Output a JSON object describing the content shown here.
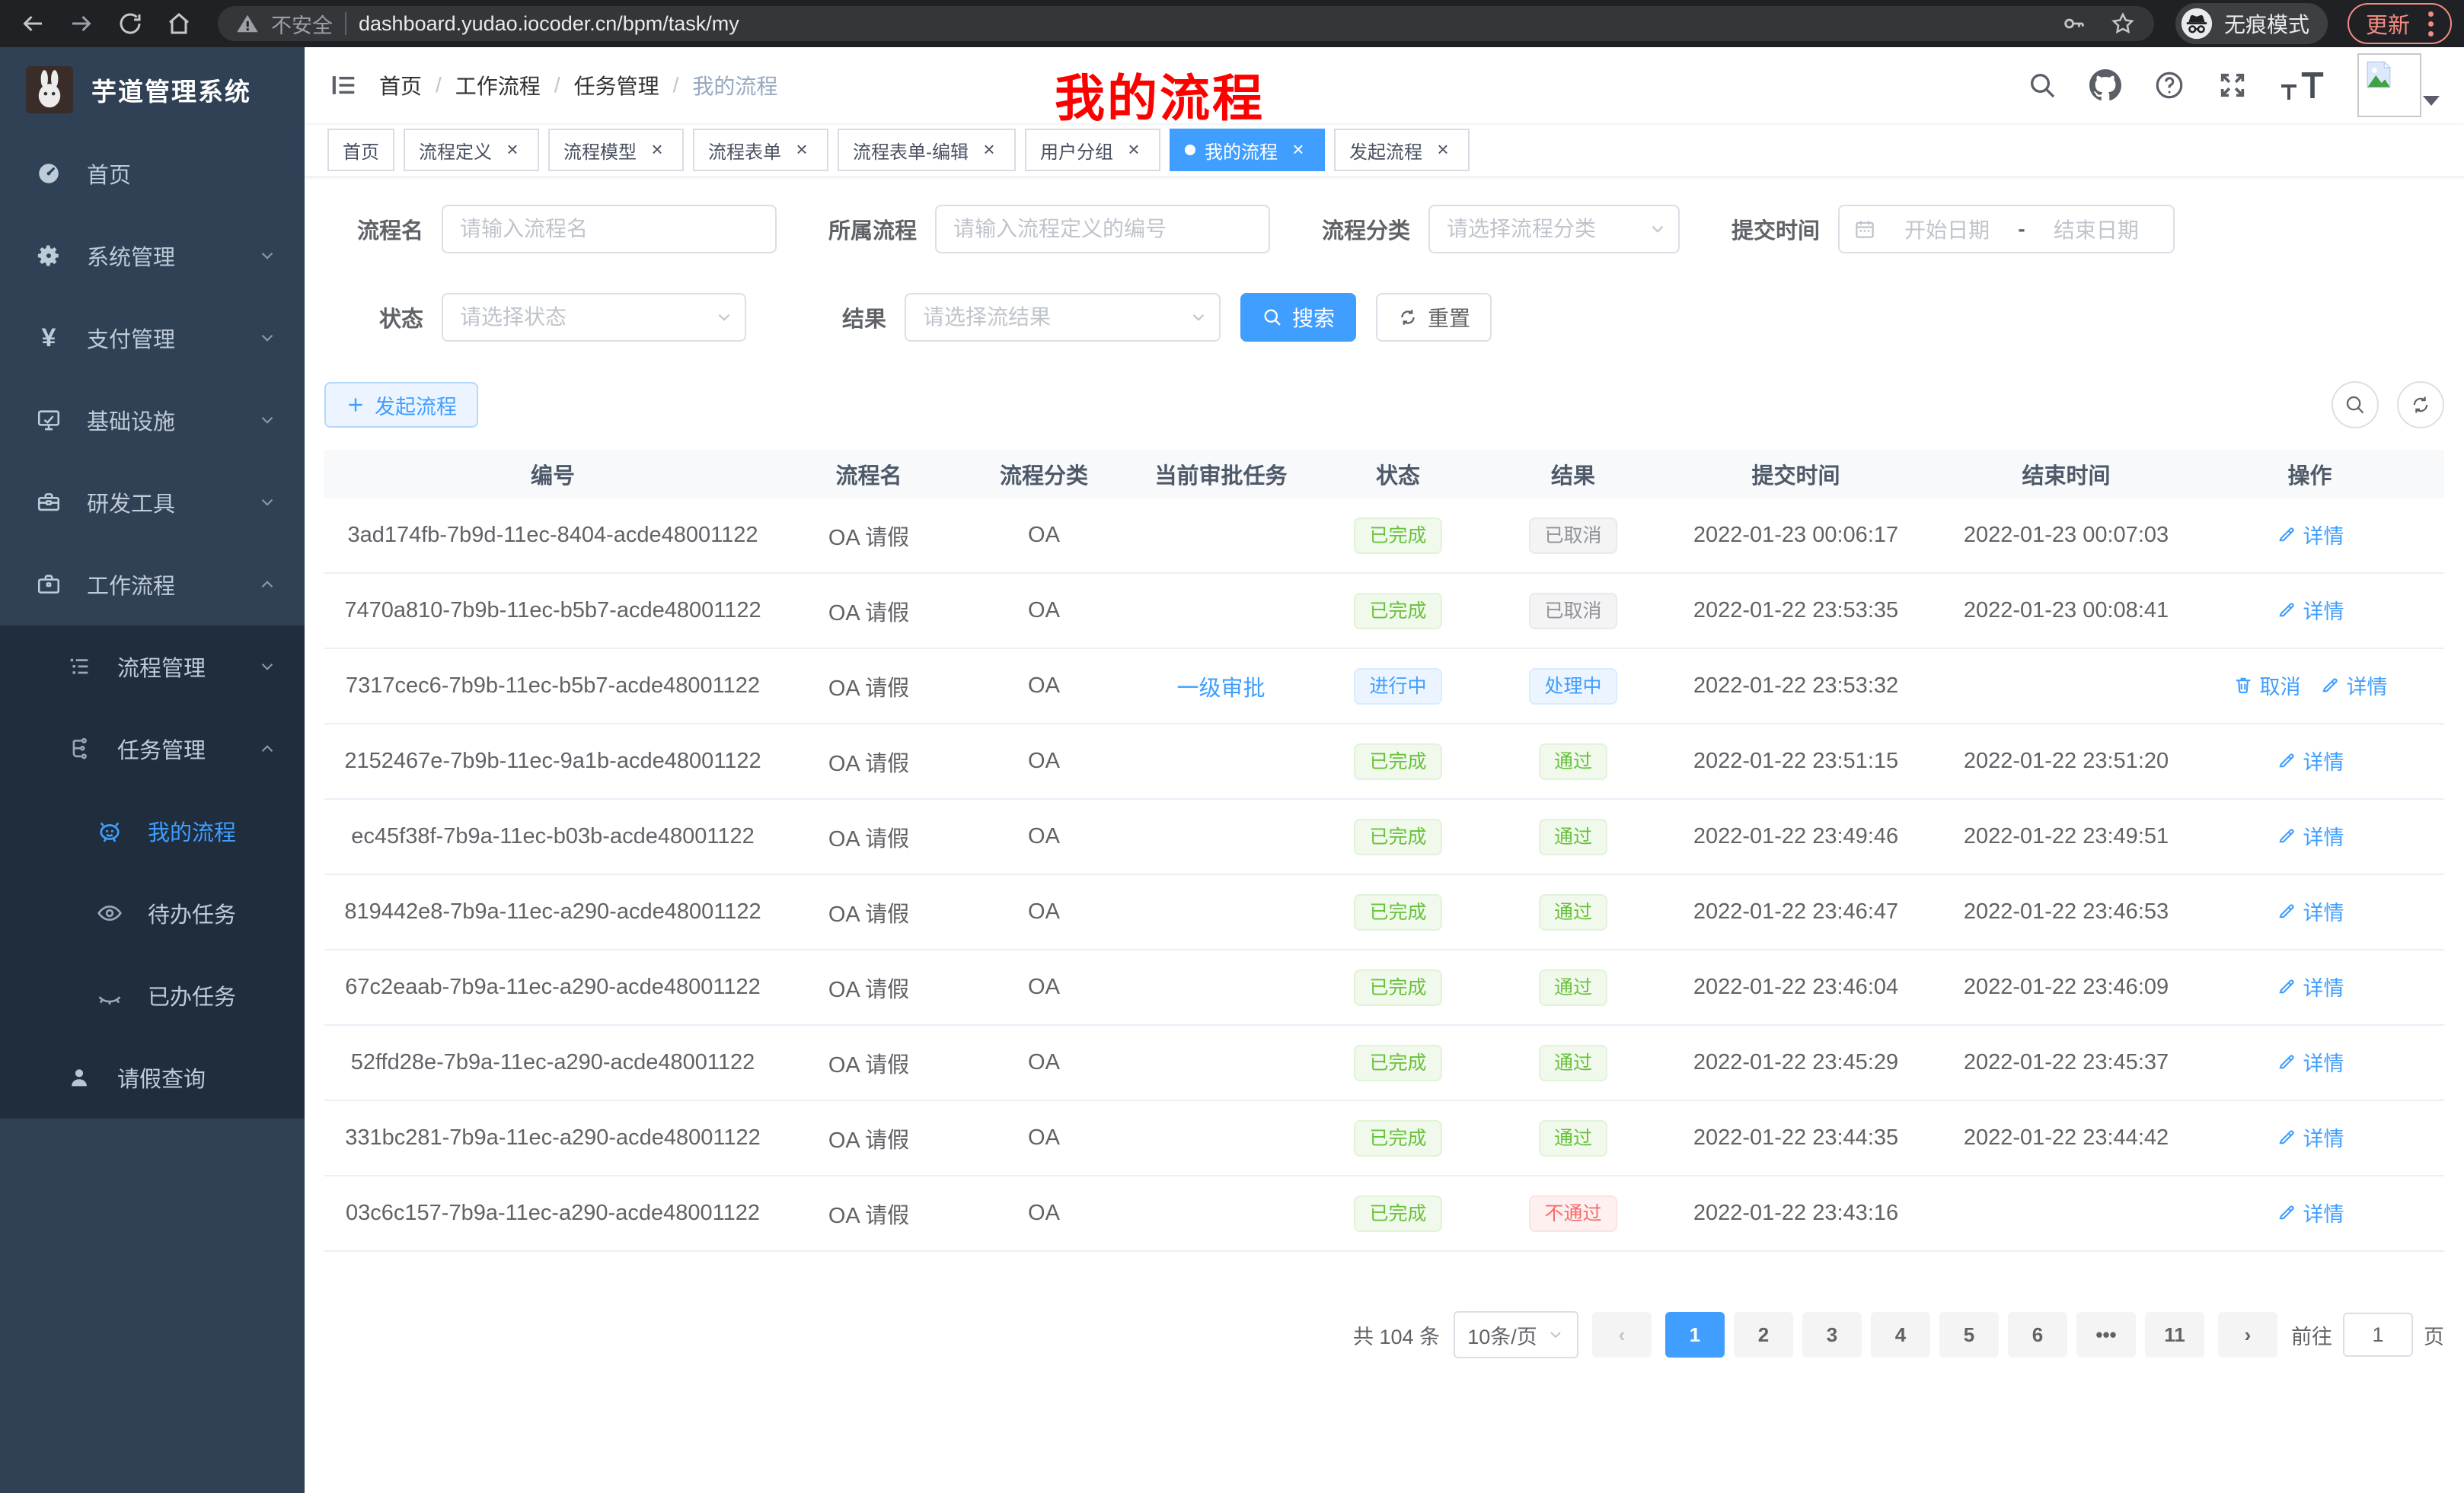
{
  "browser": {
    "security_label": "不安全",
    "url": "dashboard.yudao.iocoder.cn/bpm/task/my",
    "incognito_label": "无痕模式",
    "update_label": "更新"
  },
  "sidebar": {
    "app_title": "芋道管理系统",
    "yen_icon": "¥",
    "items": [
      {
        "label": "首页"
      },
      {
        "label": "系统管理"
      },
      {
        "label": "支付管理"
      },
      {
        "label": "基础设施"
      },
      {
        "label": "研发工具"
      },
      {
        "label": "工作流程"
      },
      {
        "label": "流程管理"
      },
      {
        "label": "任务管理"
      },
      {
        "label": "我的流程"
      },
      {
        "label": "待办任务"
      },
      {
        "label": "已办任务"
      },
      {
        "label": "请假查询"
      }
    ]
  },
  "header": {
    "breadcrumb": [
      "首页",
      "工作流程",
      "任务管理",
      "我的流程"
    ],
    "separator": "/",
    "annotation": "我的流程"
  },
  "tabs_meta": {
    "close_icon": "×"
  },
  "tabs": [
    {
      "label": "首页",
      "closable": false,
      "active": false
    },
    {
      "label": "流程定义",
      "closable": true,
      "active": false
    },
    {
      "label": "流程模型",
      "closable": true,
      "active": false
    },
    {
      "label": "流程表单",
      "closable": true,
      "active": false
    },
    {
      "label": "流程表单-编辑",
      "closable": true,
      "active": false
    },
    {
      "label": "用户分组",
      "closable": true,
      "active": false
    },
    {
      "label": "我的流程",
      "closable": true,
      "active": true
    },
    {
      "label": "发起流程",
      "closable": true,
      "active": false
    }
  ],
  "filters": {
    "name_label": "流程名",
    "name_placeholder": "请输入流程名",
    "def_label": "所属流程",
    "def_placeholder": "请输入流程定义的编号",
    "category_label": "流程分类",
    "category_placeholder": "请选择流程分类",
    "time_label": "提交时间",
    "time_start_placeholder": "开始日期",
    "time_separator": "-",
    "time_end_placeholder": "结束日期",
    "status_label": "状态",
    "status_placeholder": "请选择状态",
    "result_label": "结果",
    "result_placeholder": "请选择流结果",
    "search_label": "搜索",
    "reset_label": "重置"
  },
  "toolbar": {
    "create_label": "发起流程"
  },
  "table": {
    "columns": [
      "编号",
      "流程名",
      "流程分类",
      "当前审批任务",
      "状态",
      "结果",
      "提交时间",
      "结束时间",
      "操作"
    ],
    "rows": [
      {
        "id": "3ad174fb-7b9d-11ec-8404-acde48001122",
        "name": "OA 请假",
        "category": "OA",
        "task": "",
        "status": {
          "text": "已完成",
          "type": "success"
        },
        "result": {
          "text": "已取消",
          "type": "info"
        },
        "submit_time": "2022-01-23 00:06:17",
        "end_time": "2022-01-23 00:07:03",
        "actions": [
          {
            "type": "detail",
            "icon": "edit",
            "label": "详情"
          }
        ]
      },
      {
        "id": "7470a810-7b9b-11ec-b5b7-acde48001122",
        "name": "OA 请假",
        "category": "OA",
        "task": "",
        "status": {
          "text": "已完成",
          "type": "success"
        },
        "result": {
          "text": "已取消",
          "type": "info"
        },
        "submit_time": "2022-01-22 23:53:35",
        "end_time": "2022-01-23 00:08:41",
        "actions": [
          {
            "type": "detail",
            "icon": "edit",
            "label": "详情"
          }
        ]
      },
      {
        "id": "7317cec6-7b9b-11ec-b5b7-acde48001122",
        "name": "OA 请假",
        "category": "OA",
        "task": "一级审批",
        "status": {
          "text": "进行中",
          "type": "primary"
        },
        "result": {
          "text": "处理中",
          "type": "primary"
        },
        "submit_time": "2022-01-22 23:53:32",
        "end_time": "",
        "actions": [
          {
            "type": "cancel",
            "icon": "del",
            "label": "取消"
          },
          {
            "type": "detail",
            "icon": "edit",
            "label": "详情"
          }
        ]
      },
      {
        "id": "2152467e-7b9b-11ec-9a1b-acde48001122",
        "name": "OA 请假",
        "category": "OA",
        "task": "",
        "status": {
          "text": "已完成",
          "type": "success"
        },
        "result": {
          "text": "通过",
          "type": "success"
        },
        "submit_time": "2022-01-22 23:51:15",
        "end_time": "2022-01-22 23:51:20",
        "actions": [
          {
            "type": "detail",
            "icon": "edit",
            "label": "详情"
          }
        ]
      },
      {
        "id": "ec45f38f-7b9a-11ec-b03b-acde48001122",
        "name": "OA 请假",
        "category": "OA",
        "task": "",
        "status": {
          "text": "已完成",
          "type": "success"
        },
        "result": {
          "text": "通过",
          "type": "success"
        },
        "submit_time": "2022-01-22 23:49:46",
        "end_time": "2022-01-22 23:49:51",
        "actions": [
          {
            "type": "detail",
            "icon": "edit",
            "label": "详情"
          }
        ]
      },
      {
        "id": "819442e8-7b9a-11ec-a290-acde48001122",
        "name": "OA 请假",
        "category": "OA",
        "task": "",
        "status": {
          "text": "已完成",
          "type": "success"
        },
        "result": {
          "text": "通过",
          "type": "success"
        },
        "submit_time": "2022-01-22 23:46:47",
        "end_time": "2022-01-22 23:46:53",
        "actions": [
          {
            "type": "detail",
            "icon": "edit",
            "label": "详情"
          }
        ]
      },
      {
        "id": "67c2eaab-7b9a-11ec-a290-acde48001122",
        "name": "OA 请假",
        "category": "OA",
        "task": "",
        "status": {
          "text": "已完成",
          "type": "success"
        },
        "result": {
          "text": "通过",
          "type": "success"
        },
        "submit_time": "2022-01-22 23:46:04",
        "end_time": "2022-01-22 23:46:09",
        "actions": [
          {
            "type": "detail",
            "icon": "edit",
            "label": "详情"
          }
        ]
      },
      {
        "id": "52ffd28e-7b9a-11ec-a290-acde48001122",
        "name": "OA 请假",
        "category": "OA",
        "task": "",
        "status": {
          "text": "已完成",
          "type": "success"
        },
        "result": {
          "text": "通过",
          "type": "success"
        },
        "submit_time": "2022-01-22 23:45:29",
        "end_time": "2022-01-22 23:45:37",
        "actions": [
          {
            "type": "detail",
            "icon": "edit",
            "label": "详情"
          }
        ]
      },
      {
        "id": "331bc281-7b9a-11ec-a290-acde48001122",
        "name": "OA 请假",
        "category": "OA",
        "task": "",
        "status": {
          "text": "已完成",
          "type": "success"
        },
        "result": {
          "text": "通过",
          "type": "success"
        },
        "submit_time": "2022-01-22 23:44:35",
        "end_time": "2022-01-22 23:44:42",
        "actions": [
          {
            "type": "detail",
            "icon": "edit",
            "label": "详情"
          }
        ]
      },
      {
        "id": "03c6c157-7b9a-11ec-a290-acde48001122",
        "name": "OA 请假",
        "category": "OA",
        "task": "",
        "status": {
          "text": "已完成",
          "type": "success"
        },
        "result": {
          "text": "不通过",
          "type": "danger"
        },
        "submit_time": "2022-01-22 23:43:16",
        "end_time": "",
        "actions": [
          {
            "type": "detail",
            "icon": "edit",
            "label": "详情"
          }
        ]
      }
    ]
  },
  "pagination": {
    "total_label": "共 104 条",
    "size_label": "10条/页",
    "prev_icon": "‹",
    "next_icon": "›",
    "pages": [
      {
        "label": "1",
        "active": true
      },
      {
        "label": "2"
      },
      {
        "label": "3"
      },
      {
        "label": "4"
      },
      {
        "label": "5"
      },
      {
        "label": "6"
      },
      {
        "label": "•••",
        "more": true
      },
      {
        "label": "11"
      }
    ],
    "goto_label": "前往",
    "goto_value": "1",
    "unit_label": "页"
  }
}
